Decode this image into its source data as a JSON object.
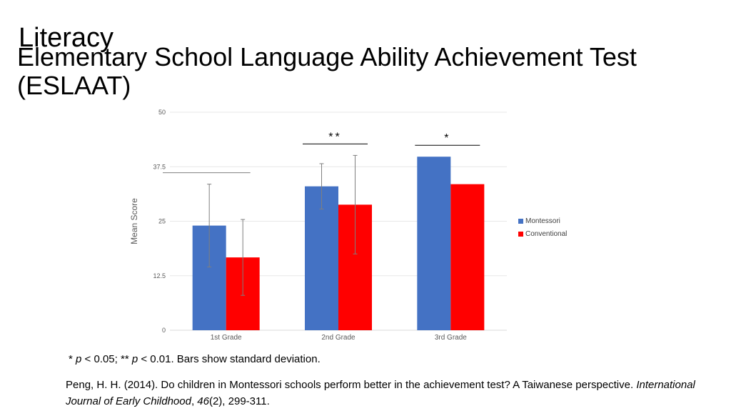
{
  "slide": {
    "title_top": "Literacy",
    "title_main": "Elementary School Language Ability Achievement Test (ESLAAT)"
  },
  "chart_data": {
    "type": "bar",
    "categories": [
      "1st Grade",
      "2nd Grade",
      "3rd Grade"
    ],
    "series": [
      {
        "name": "Montessori",
        "values": [
          24,
          33,
          39.8
        ],
        "errors": [
          9.5,
          5.2,
          null
        ],
        "color": "#4472C4"
      },
      {
        "name": "Conventional",
        "values": [
          16.7,
          28.8,
          33.5
        ],
        "errors": [
          8.7,
          11.3,
          null
        ],
        "color": "#FF0000"
      }
    ],
    "ylabel": "Mean Score",
    "ylim": [
      0,
      50
    ],
    "yticks": [
      "0",
      "12.5",
      "25",
      "37.5",
      "50"
    ],
    "significance": [
      "",
      "**",
      "*"
    ],
    "legend_position": "right",
    "grid": true
  },
  "footnote": {
    "star1": "*",
    "p1": "p",
    "lt1": " < 0.05; ** ",
    "p2": "p",
    "rest": " < 0.01. Bars show standard deviation."
  },
  "citation": {
    "part1": "Peng, H. H. (2014). Do children in Montessori schools perform better in the achievement test? A Taiwanese perspective. ",
    "journal": "International Journal of Early Childhood",
    "sep": ", ",
    "volume": "46",
    "rest": "(2), 299-311."
  }
}
